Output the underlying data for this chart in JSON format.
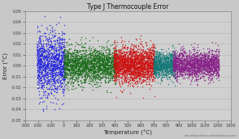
{
  "title": "Type J Thermocouple Error",
  "xlabel": "Temperature (°C)",
  "ylabel": "Error (°C)",
  "xlim": [
    -300,
    1300
  ],
  "ylim": [
    -0.05,
    0.05
  ],
  "xticks": [
    -300,
    -200,
    -100,
    0,
    100,
    200,
    300,
    400,
    500,
    600,
    700,
    800,
    900,
    1000,
    1100,
    1200,
    1300
  ],
  "yticks": [
    -0.05,
    -0.04,
    -0.03,
    -0.02,
    -0.01,
    0.0,
    0.01,
    0.02,
    0.03,
    0.04,
    0.05
  ],
  "background_color": "#c8c8c8",
  "plot_bg_color": "#d0d0d0",
  "grid_color": "#bbbbbb",
  "watermark": "www.analog-solutions.com/embedded-systems",
  "segments": [
    {
      "x_range": [
        -210,
        10
      ],
      "color": "#2222dd",
      "n": 1200,
      "spread": 0.014
    },
    {
      "x_range": [
        0,
        410
      ],
      "color": "#1a6b1a",
      "n": 2000,
      "spread": 0.008
    },
    {
      "x_range": [
        390,
        710
      ],
      "color": "#cc1111",
      "n": 2000,
      "spread": 0.008
    },
    {
      "x_range": [
        700,
        870
      ],
      "color": "#147878",
      "n": 900,
      "spread": 0.006
    },
    {
      "x_range": [
        850,
        1210
      ],
      "color": "#882288",
      "n": 1800,
      "spread": 0.006
    }
  ],
  "marker_size": 1.2,
  "seed": 42
}
